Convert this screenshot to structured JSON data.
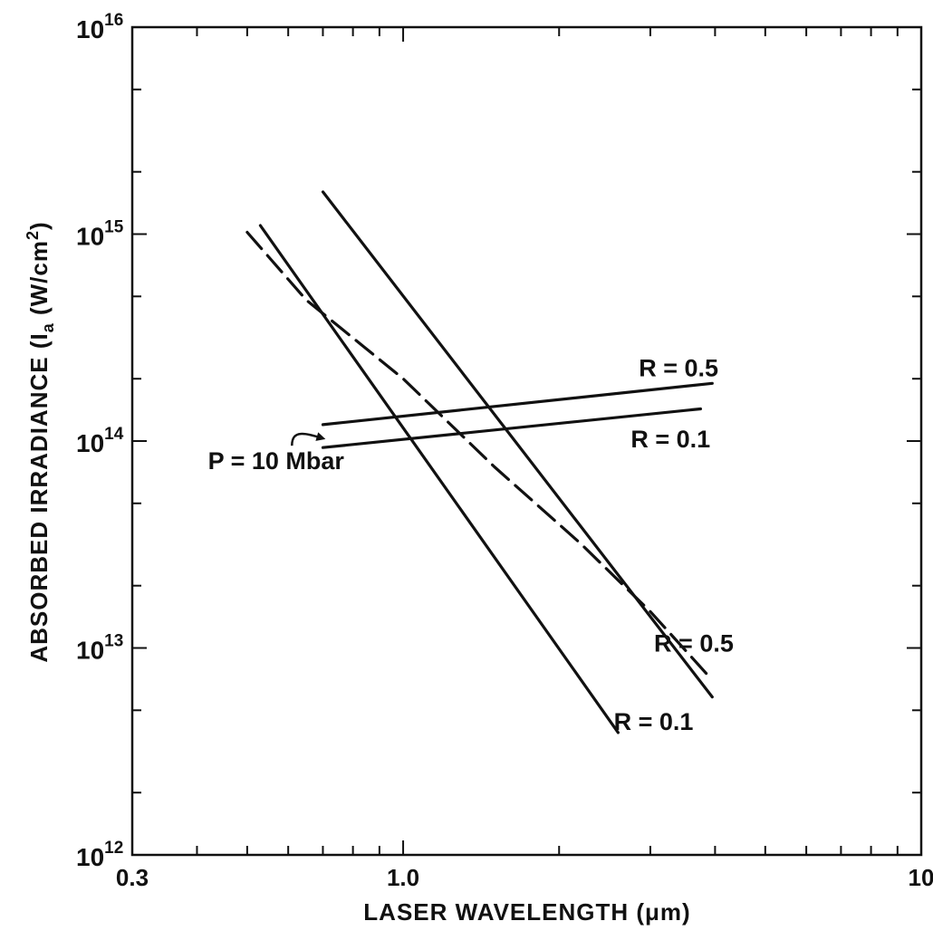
{
  "chart_data": {
    "type": "line",
    "xscale": "log",
    "yscale": "log",
    "xlim": [
      0.3,
      10
    ],
    "ylim": [
      1000000000000.0,
      1e+16
    ],
    "xlabel": "LASER WAVELENGTH (μm)",
    "ylabel": "ABSORBED IRRADIANCE (Iₐ (W/cm²)",
    "ylabel_parts": {
      "main": "ABSORBED IRRADIANCE (I",
      "sub": "a",
      "mid": " (W/cm",
      "sup": "2",
      "end": ")"
    },
    "x_tick_labels": [
      {
        "value": 0.3,
        "label": "0.3"
      },
      {
        "value": 1.0,
        "label": "1.0"
      },
      {
        "value": 10,
        "label": "10"
      }
    ],
    "y_tick_labels": [
      {
        "value": 1000000000000.0,
        "base": "10",
        "exp": "12"
      },
      {
        "value": 10000000000000.0,
        "base": "10",
        "exp": "13"
      },
      {
        "value": 100000000000000.0,
        "base": "10",
        "exp": "14"
      },
      {
        "value": 1000000000000000.0,
        "base": "10",
        "exp": "15"
      },
      {
        "value": 1e+16,
        "base": "10",
        "exp": "16"
      }
    ],
    "series": [
      {
        "style": "solid",
        "color": "#111111",
        "x": [
          0.53,
          2.6
        ],
        "y": [
          1100000000000000.0,
          3900000000000.0
        ]
      },
      {
        "style": "solid",
        "color": "#111111",
        "x": [
          0.7,
          3.95
        ],
        "y": [
          1600000000000000.0,
          5800000000000.0
        ]
      },
      {
        "style": "dashed",
        "color": "#111111",
        "x": [
          0.5,
          0.65,
          1.0,
          1.5,
          2.2,
          3.0,
          3.95
        ],
        "y": [
          1020000000000000.0,
          480000000000000.0,
          200000000000000.0,
          75000000000000.0,
          32000000000000.0,
          15000000000000.0,
          7000000000000.0
        ]
      },
      {
        "style": "solid",
        "color": "#111111",
        "x": [
          0.7,
          3.95
        ],
        "y": [
          120000000000000.0,
          190000000000000.0
        ]
      },
      {
        "style": "solid",
        "color": "#111111",
        "x": [
          0.7,
          3.75
        ],
        "y": [
          93000000000000.0,
          143000000000000.0
        ]
      }
    ],
    "annotations": [
      {
        "text": "R = 0.5",
        "x": 2.85,
        "y": 225000000000000.0
      },
      {
        "text": "R = 0.1",
        "x": 2.75,
        "y": 102000000000000.0
      },
      {
        "text": "R = 0.5",
        "x": 3.05,
        "y": 10500000000000.0
      },
      {
        "text": "R = 0.1",
        "x": 2.55,
        "y": 4400000000000.0
      },
      {
        "text": "P = 10 Mbar",
        "x": 0.42,
        "y": 80000000000000.0
      }
    ],
    "arrow": {
      "from": [
        0.61,
        95000000000000.0
      ],
      "to": [
        0.7,
        103000000000000.0
      ]
    }
  }
}
